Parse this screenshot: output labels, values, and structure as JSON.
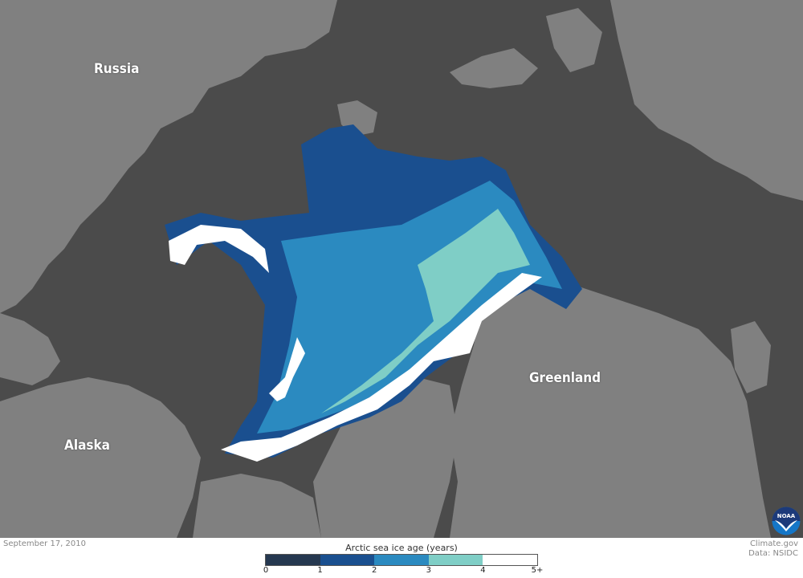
{
  "map": {
    "labels": {
      "russia": "Russia",
      "greenland": "Greenland",
      "alaska": "Alaska"
    },
    "colors": {
      "ocean": "#4b4b4b",
      "land": "#808080"
    }
  },
  "footer": {
    "date": "September 17, 2010",
    "credit_line1": "Climate.gov",
    "credit_line2": "Data: NSIDC"
  },
  "legend": {
    "title": "Arctic sea ice age (years)",
    "ticks": [
      "0",
      "1",
      "2",
      "3",
      "4",
      "5+"
    ],
    "colors": [
      "#253850",
      "#1a4f8f",
      "#2b8ac0",
      "#7fcec6",
      "#ffffff"
    ]
  },
  "logo": {
    "text": "NOAA"
  }
}
